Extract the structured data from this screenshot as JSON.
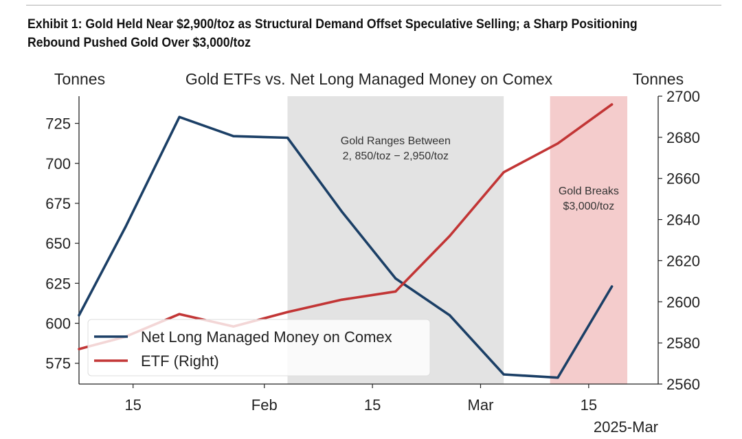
{
  "exhibit": {
    "title_line1": "Exhibit 1: Gold Held Near $2,900/toz as Structural Demand Offset Speculative Selling; a Sharp Positioning",
    "title_line2": "Rebound Pushed Gold Over $3,000/toz"
  },
  "colors": {
    "net_long": "#1b3f66",
    "etf": "#c23535",
    "range_shade": "#e3e3e3",
    "breakout_shade": "#f4cccc"
  },
  "chart_data": {
    "type": "line",
    "title": "Gold ETFs vs. Net Long Managed Money on Comex",
    "ylabel_left": "Tonnes",
    "ylabel_right": "Tonnes",
    "x_start": "2025-01-08",
    "x_end": "2025-03-24",
    "x_ticks": [
      {
        "date": "2025-01-15",
        "label": "15"
      },
      {
        "date": "2025-02-01",
        "label": "Feb"
      },
      {
        "date": "2025-02-15",
        "label": "15"
      },
      {
        "date": "2025-03-01",
        "label": "Mar"
      },
      {
        "date": "2025-03-15",
        "label": "15"
      }
    ],
    "x_offset_label": "2025-Mar",
    "ylim_left": [
      562,
      742
    ],
    "yticks_left": [
      575,
      600,
      625,
      650,
      675,
      700,
      725
    ],
    "ylim_right": [
      2560,
      2700
    ],
    "yticks_right": [
      2560,
      2580,
      2600,
      2620,
      2640,
      2660,
      2680,
      2700
    ],
    "series": [
      {
        "name": "Net Long Managed Money on Comex",
        "axis": "left",
        "color": "#1b3f66",
        "dates": [
          "2025-01-08",
          "2025-01-14",
          "2025-01-21",
          "2025-01-28",
          "2025-02-04",
          "2025-02-11",
          "2025-02-18",
          "2025-02-25",
          "2025-03-04",
          "2025-03-11",
          "2025-03-18"
        ],
        "values": [
          605,
          660,
          729,
          717,
          716,
          670,
          628,
          605,
          568,
          566,
          623
        ]
      },
      {
        "name": "ETF (Right)",
        "axis": "right",
        "color": "#c23535",
        "dates": [
          "2025-01-08",
          "2025-01-14",
          "2025-01-21",
          "2025-01-28",
          "2025-02-04",
          "2025-02-11",
          "2025-02-18",
          "2025-02-25",
          "2025-03-04",
          "2025-03-11",
          "2025-03-18"
        ],
        "values": [
          2577,
          2583,
          2594,
          2588,
          2595,
          2601,
          2605,
          2632,
          2663,
          2677,
          2696
        ]
      }
    ],
    "shaded_regions": [
      {
        "start": "2025-02-04",
        "end": "2025-03-04",
        "color": "#e3e3e3",
        "label_line1": "Gold Ranges Between",
        "label_line2": "2, 850/toz − 2,950/toz"
      },
      {
        "start": "2025-03-10",
        "end": "2025-03-20",
        "color": "#f4cccc",
        "label_line1": "Gold Breaks",
        "label_line2": "$3,000/toz"
      }
    ],
    "legend_position": "lower-left"
  }
}
